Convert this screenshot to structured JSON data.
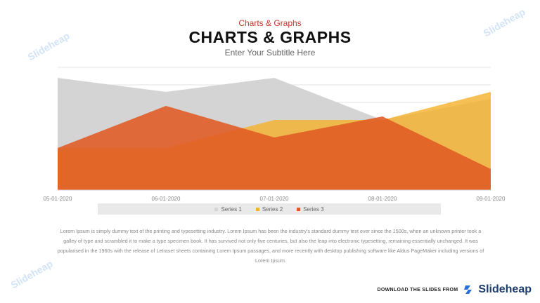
{
  "header": {
    "kicker": "Charts & Graphs",
    "title": "CHARTS & GRAPHS",
    "subtitle": "Enter Your Subtitle Here"
  },
  "chart_data": {
    "type": "area",
    "categories": [
      "05-01-2020",
      "06-01-2020",
      "07-01-2020",
      "08-01-2020",
      "09-01-2020"
    ],
    "series": [
      {
        "name": "Series 1",
        "values": [
          32,
          28,
          32,
          20,
          26
        ],
        "color": "#d4d4d4"
      },
      {
        "name": "Series 2",
        "values": [
          12,
          12,
          20,
          20,
          28
        ],
        "color": "#f5b230"
      },
      {
        "name": "Series 3",
        "values": [
          12,
          24,
          15,
          21,
          6
        ],
        "color": "#e05a22"
      }
    ],
    "ylim": [
      0,
      35
    ],
    "grid": true,
    "legend": "bottom"
  },
  "body": {
    "text": "Lorem Ipsum is simply dummy text of the printing and typesetting industry. Lorem Ipsum has been the industry's standard dummy text ever since the 1500s, when an unknown printer took a galley of type and scrambled it to make a type specimen book. It has survived not only five centuries, but also the leap into electronic typesetting, remaining essentially unchanged. It was popularised in the 1960s with the release of Letraset sheets containing Lorem Ipsum passages, and more recently with desktop publishing software like Aldus PageMaker including versions of Lorem Ipsum."
  },
  "footer": {
    "cta": "DOWNLOAD THE SLIDES FROM",
    "brand": "Slideheap"
  },
  "watermark": "Slideheap"
}
